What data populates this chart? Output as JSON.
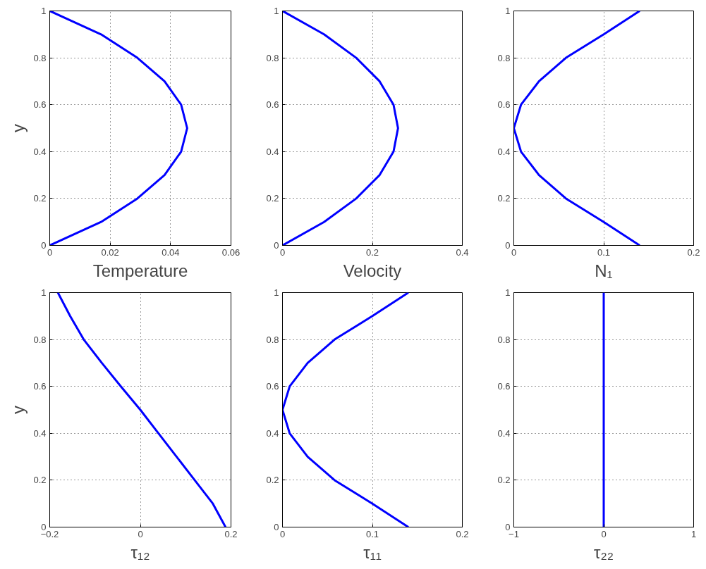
{
  "chart_data": [
    {
      "type": "line",
      "xlabel": "Temperature",
      "ylabel": "y",
      "xlim": [
        0,
        0.06
      ],
      "xticks": [
        0,
        0.02,
        0.04,
        0.06
      ],
      "ylim": [
        0,
        1
      ],
      "yticks": [
        0,
        0.2,
        0.4,
        0.6,
        0.8,
        1
      ],
      "grid": true,
      "series": [
        {
          "color": "#0000ff",
          "x": [
            0,
            0.017,
            0.029,
            0.038,
            0.0435,
            0.0455,
            0.0435,
            0.038,
            0.029,
            0.017,
            0
          ],
          "values": [
            0,
            0.1,
            0.2,
            0.3,
            0.4,
            0.5,
            0.6,
            0.7,
            0.8,
            0.9,
            1
          ]
        }
      ]
    },
    {
      "type": "line",
      "xlabel": "Velocity",
      "xlim": [
        0,
        0.4
      ],
      "xticks": [
        0,
        0.2,
        0.4
      ],
      "ylim": [
        0,
        1
      ],
      "yticks": [
        0,
        0.2,
        0.4,
        0.6,
        0.8,
        1
      ],
      "grid": true,
      "series": [
        {
          "color": "#0000ff",
          "x": [
            0,
            0.0925,
            0.164,
            0.216,
            0.247,
            0.257,
            0.247,
            0.216,
            0.164,
            0.0925,
            0
          ],
          "values": [
            0,
            0.1,
            0.2,
            0.3,
            0.4,
            0.5,
            0.6,
            0.7,
            0.8,
            0.9,
            1
          ]
        }
      ]
    },
    {
      "type": "line",
      "xlabel": "N₁",
      "xlim": [
        0,
        0.2
      ],
      "xticks": [
        0,
        0.1,
        0.2
      ],
      "ylim": [
        0,
        1
      ],
      "yticks": [
        0,
        0.2,
        0.4,
        0.6,
        0.8,
        1
      ],
      "grid": true,
      "series": [
        {
          "color": "#0000ff",
          "x": [
            0.14,
            0.1,
            0.058,
            0.028,
            0.008,
            0,
            0.008,
            0.028,
            0.058,
            0.1,
            0.14
          ],
          "values": [
            0,
            0.1,
            0.2,
            0.3,
            0.4,
            0.5,
            0.6,
            0.7,
            0.8,
            0.9,
            1
          ]
        }
      ]
    },
    {
      "type": "line",
      "xlabel": "τ₁₂",
      "ylabel": "y",
      "xlim": [
        -0.2,
        0.2
      ],
      "xticks": [
        {
          "value": -0.2,
          "label": "−0.2"
        },
        0,
        0.2
      ],
      "ylim": [
        0,
        1
      ],
      "yticks": [
        0,
        0.2,
        0.4,
        0.6,
        0.8,
        1
      ],
      "grid": true,
      "series": [
        {
          "color": "#0000ff",
          "x": [
            0.188,
            0.16,
            0.12,
            0.08,
            0.04,
            0,
            -0.043,
            -0.085,
            -0.125,
            -0.155,
            -0.182
          ],
          "values": [
            0,
            0.1,
            0.2,
            0.3,
            0.4,
            0.5,
            0.6,
            0.7,
            0.8,
            0.9,
            1
          ]
        }
      ]
    },
    {
      "type": "line",
      "xlabel": "τ₁₁",
      "xlim": [
        0,
        0.2
      ],
      "xticks": [
        0,
        0.1,
        0.2
      ],
      "ylim": [
        0,
        1
      ],
      "yticks": [
        0,
        0.2,
        0.4,
        0.6,
        0.8,
        1
      ],
      "grid": true,
      "series": [
        {
          "color": "#0000ff",
          "x": [
            0.14,
            0.1,
            0.058,
            0.028,
            0.008,
            0,
            0.008,
            0.028,
            0.058,
            0.1,
            0.14
          ],
          "values": [
            0,
            0.1,
            0.2,
            0.3,
            0.4,
            0.5,
            0.6,
            0.7,
            0.8,
            0.9,
            1
          ]
        }
      ]
    },
    {
      "type": "line",
      "xlabel": "τ₂₂",
      "xlim": [
        -1,
        1
      ],
      "xticks": [
        {
          "value": -1,
          "label": "−1"
        },
        0,
        1
      ],
      "ylim": [
        0,
        1
      ],
      "yticks": [
        0,
        0.2,
        0.4,
        0.6,
        0.8,
        1
      ],
      "grid": true,
      "series": [
        {
          "color": "#0000ff",
          "x": [
            0,
            0
          ],
          "values": [
            0,
            1
          ]
        }
      ]
    }
  ]
}
